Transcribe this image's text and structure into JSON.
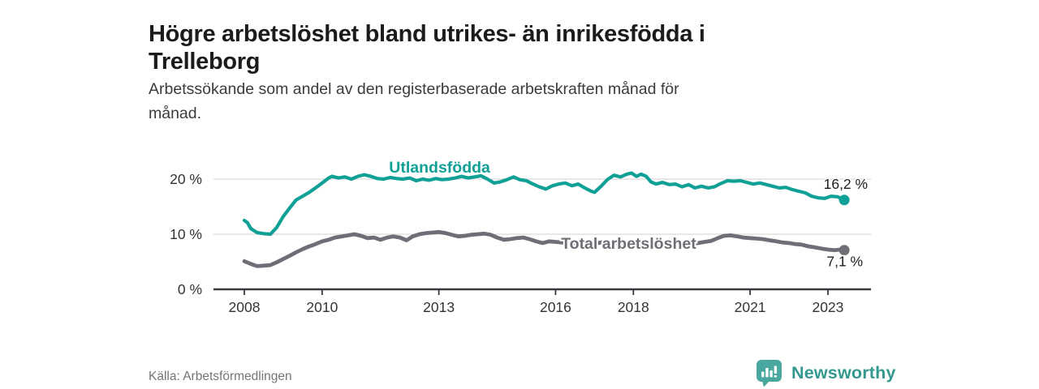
{
  "header": {
    "title_line1": "Högre arbetslöshet bland utrikes- än inrikesfödda i",
    "title_line2": "Trelleborg",
    "subtitle_line1": "Arbetssökande som andel av den registerbaserade arbetskraften månad för",
    "subtitle_line2": "månad."
  },
  "footer": {
    "source": "Källa: Arbetsförmedlingen",
    "brand": "Newsworthy"
  },
  "colors": {
    "accent_teal": "#10a096",
    "series_gray": "#716d76",
    "gridline": "#d9d9d9",
    "axis_line": "#36393d",
    "axis_text": "#333333",
    "title_text": "#1b1b1b",
    "end_label_text": "#1d1d1d",
    "logo_teal": "#48a79e",
    "logo_text_teal": "#35988f"
  },
  "chart_data": {
    "type": "line",
    "title": "Högre arbetslöshet bland utrikes- än inrikesfödda i Trelleborg",
    "subtitle": "Arbetssökande som andel av den registerbaserade arbetskraften månad för månad.",
    "xlabel": "",
    "ylabel": "",
    "grid": "horizontal",
    "legend": "inline-labels",
    "xlim": [
      2007.2,
      2024.1
    ],
    "ylim": [
      0,
      24
    ],
    "x_ticks": [
      {
        "year": 2008,
        "label": "2008"
      },
      {
        "year": 2010,
        "label": "2010"
      },
      {
        "year": 2013,
        "label": "2013"
      },
      {
        "year": 2016,
        "label": "2016"
      },
      {
        "year": 2018,
        "label": "2018"
      },
      {
        "year": 2021,
        "label": "2021"
      },
      {
        "year": 2023,
        "label": "2023"
      }
    ],
    "y_ticks": [
      {
        "value": 0,
        "label": "0 %"
      },
      {
        "value": 10,
        "label": "10 %"
      },
      {
        "value": 20,
        "label": "20 %"
      }
    ],
    "series": [
      {
        "name": "Utlandsfödda",
        "color": "#10a096",
        "end_label": "16,2 %",
        "end_value": 16.2,
        "label_at": [
          2011.72,
          21.2
        ],
        "points": [
          [
            2008.0,
            12.5
          ],
          [
            2008.08,
            12.1
          ],
          [
            2008.17,
            11.0
          ],
          [
            2008.33,
            10.3
          ],
          [
            2008.5,
            10.1
          ],
          [
            2008.67,
            10.0
          ],
          [
            2008.83,
            11.2
          ],
          [
            2009.0,
            13.2
          ],
          [
            2009.17,
            14.8
          ],
          [
            2009.33,
            16.2
          ],
          [
            2009.5,
            16.9
          ],
          [
            2009.67,
            17.6
          ],
          [
            2009.83,
            18.4
          ],
          [
            2010.0,
            19.3
          ],
          [
            2010.17,
            20.2
          ],
          [
            2010.25,
            20.5
          ],
          [
            2010.42,
            20.2
          ],
          [
            2010.58,
            20.4
          ],
          [
            2010.75,
            20.0
          ],
          [
            2010.92,
            20.5
          ],
          [
            2011.08,
            20.8
          ],
          [
            2011.25,
            20.5
          ],
          [
            2011.42,
            20.1
          ],
          [
            2011.58,
            20.0
          ],
          [
            2011.75,
            20.3
          ],
          [
            2011.92,
            20.1
          ],
          [
            2012.08,
            20.0
          ],
          [
            2012.25,
            20.2
          ],
          [
            2012.42,
            19.7
          ],
          [
            2012.58,
            20.0
          ],
          [
            2012.75,
            19.8
          ],
          [
            2012.92,
            20.1
          ],
          [
            2013.08,
            19.9
          ],
          [
            2013.25,
            20.0
          ],
          [
            2013.42,
            20.2
          ],
          [
            2013.58,
            20.5
          ],
          [
            2013.75,
            20.2
          ],
          [
            2013.92,
            20.4
          ],
          [
            2014.08,
            20.6
          ],
          [
            2014.25,
            20.0
          ],
          [
            2014.42,
            19.3
          ],
          [
            2014.58,
            19.5
          ],
          [
            2014.75,
            19.9
          ],
          [
            2014.92,
            20.4
          ],
          [
            2015.08,
            19.9
          ],
          [
            2015.25,
            19.7
          ],
          [
            2015.42,
            19.1
          ],
          [
            2015.58,
            18.6
          ],
          [
            2015.75,
            18.2
          ],
          [
            2015.92,
            18.8
          ],
          [
            2016.08,
            19.1
          ],
          [
            2016.25,
            19.3
          ],
          [
            2016.42,
            18.8
          ],
          [
            2016.58,
            19.1
          ],
          [
            2016.75,
            18.4
          ],
          [
            2016.92,
            17.8
          ],
          [
            2017.0,
            17.6
          ],
          [
            2017.17,
            18.7
          ],
          [
            2017.33,
            19.9
          ],
          [
            2017.5,
            20.7
          ],
          [
            2017.67,
            20.4
          ],
          [
            2017.83,
            20.9
          ],
          [
            2017.95,
            21.1
          ],
          [
            2018.08,
            20.5
          ],
          [
            2018.2,
            20.9
          ],
          [
            2018.33,
            20.5
          ],
          [
            2018.45,
            19.5
          ],
          [
            2018.58,
            19.1
          ],
          [
            2018.75,
            19.4
          ],
          [
            2018.92,
            19.0
          ],
          [
            2019.08,
            19.1
          ],
          [
            2019.25,
            18.6
          ],
          [
            2019.42,
            19.0
          ],
          [
            2019.58,
            18.4
          ],
          [
            2019.75,
            18.7
          ],
          [
            2019.92,
            18.4
          ],
          [
            2020.08,
            18.6
          ],
          [
            2020.25,
            19.2
          ],
          [
            2020.42,
            19.7
          ],
          [
            2020.58,
            19.6
          ],
          [
            2020.75,
            19.7
          ],
          [
            2020.92,
            19.4
          ],
          [
            2021.08,
            19.1
          ],
          [
            2021.25,
            19.3
          ],
          [
            2021.42,
            19.0
          ],
          [
            2021.58,
            18.7
          ],
          [
            2021.75,
            18.4
          ],
          [
            2021.92,
            18.5
          ],
          [
            2022.08,
            18.1
          ],
          [
            2022.25,
            17.8
          ],
          [
            2022.42,
            17.5
          ],
          [
            2022.58,
            16.9
          ],
          [
            2022.75,
            16.6
          ],
          [
            2022.92,
            16.5
          ],
          [
            2023.08,
            16.9
          ],
          [
            2023.25,
            16.8
          ],
          [
            2023.42,
            16.2
          ]
        ]
      },
      {
        "name": "Total arbetslöshet",
        "color": "#716d76",
        "end_label": "7,1 %",
        "end_value": 7.1,
        "label_at": [
          2016.14,
          7.35
        ],
        "points": [
          [
            2008.0,
            5.1
          ],
          [
            2008.17,
            4.6
          ],
          [
            2008.33,
            4.2
          ],
          [
            2008.5,
            4.3
          ],
          [
            2008.67,
            4.4
          ],
          [
            2008.83,
            4.9
          ],
          [
            2009.0,
            5.5
          ],
          [
            2009.17,
            6.1
          ],
          [
            2009.33,
            6.7
          ],
          [
            2009.5,
            7.3
          ],
          [
            2009.67,
            7.8
          ],
          [
            2009.83,
            8.2
          ],
          [
            2010.0,
            8.7
          ],
          [
            2010.17,
            9.0
          ],
          [
            2010.33,
            9.4
          ],
          [
            2010.5,
            9.6
          ],
          [
            2010.67,
            9.8
          ],
          [
            2010.83,
            10.0
          ],
          [
            2011.0,
            9.7
          ],
          [
            2011.17,
            9.3
          ],
          [
            2011.33,
            9.4
          ],
          [
            2011.5,
            9.0
          ],
          [
            2011.67,
            9.4
          ],
          [
            2011.83,
            9.6
          ],
          [
            2012.0,
            9.4
          ],
          [
            2012.17,
            8.9
          ],
          [
            2012.33,
            9.6
          ],
          [
            2012.5,
            10.0
          ],
          [
            2012.67,
            10.2
          ],
          [
            2012.83,
            10.3
          ],
          [
            2013.0,
            10.4
          ],
          [
            2013.17,
            10.2
          ],
          [
            2013.33,
            9.9
          ],
          [
            2013.5,
            9.6
          ],
          [
            2013.67,
            9.7
          ],
          [
            2013.83,
            9.9
          ],
          [
            2014.0,
            10.0
          ],
          [
            2014.17,
            10.1
          ],
          [
            2014.33,
            9.9
          ],
          [
            2014.5,
            9.4
          ],
          [
            2014.67,
            9.0
          ],
          [
            2014.83,
            9.1
          ],
          [
            2015.0,
            9.3
          ],
          [
            2015.17,
            9.4
          ],
          [
            2015.33,
            9.1
          ],
          [
            2015.5,
            8.7
          ],
          [
            2015.67,
            8.4
          ],
          [
            2015.83,
            8.7
          ],
          [
            2016.0,
            8.6
          ],
          [
            2016.17,
            8.5
          ],
          [
            2016.33,
            8.2
          ],
          [
            2016.5,
            8.4
          ],
          [
            2016.67,
            8.3
          ],
          [
            2016.83,
            8.2
          ],
          [
            2017.0,
            8.3
          ],
          [
            2017.17,
            8.5
          ],
          [
            2017.33,
            8.6
          ],
          [
            2017.5,
            8.5
          ],
          [
            2017.67,
            8.4
          ],
          [
            2017.83,
            8.2
          ],
          [
            2018.0,
            8.1
          ],
          [
            2018.17,
            8.0
          ],
          [
            2018.33,
            7.9
          ],
          [
            2018.5,
            7.8
          ],
          [
            2018.67,
            7.8
          ],
          [
            2018.83,
            7.9
          ],
          [
            2019.0,
            8.0
          ],
          [
            2019.17,
            8.1
          ],
          [
            2019.33,
            8.2
          ],
          [
            2019.5,
            8.3
          ],
          [
            2019.67,
            8.4
          ],
          [
            2019.83,
            8.6
          ],
          [
            2020.0,
            8.8
          ],
          [
            2020.17,
            9.3
          ],
          [
            2020.33,
            9.7
          ],
          [
            2020.5,
            9.8
          ],
          [
            2020.67,
            9.6
          ],
          [
            2020.83,
            9.4
          ],
          [
            2021.0,
            9.3
          ],
          [
            2021.17,
            9.2
          ],
          [
            2021.33,
            9.1
          ],
          [
            2021.5,
            8.9
          ],
          [
            2021.67,
            8.7
          ],
          [
            2021.83,
            8.5
          ],
          [
            2022.0,
            8.4
          ],
          [
            2022.17,
            8.2
          ],
          [
            2022.33,
            8.1
          ],
          [
            2022.5,
            7.8
          ],
          [
            2022.67,
            7.6
          ],
          [
            2022.83,
            7.4
          ],
          [
            2023.0,
            7.2
          ],
          [
            2023.17,
            7.1
          ],
          [
            2023.3,
            7.2
          ],
          [
            2023.42,
            7.1
          ]
        ]
      }
    ]
  }
}
